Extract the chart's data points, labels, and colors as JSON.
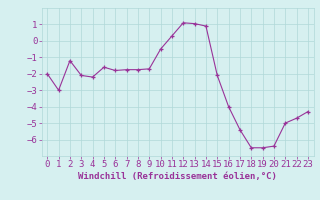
{
  "x": [
    0,
    1,
    2,
    3,
    4,
    5,
    6,
    7,
    8,
    9,
    10,
    11,
    12,
    13,
    14,
    15,
    16,
    17,
    18,
    19,
    20,
    21,
    22,
    23
  ],
  "y": [
    -2.0,
    -3.0,
    -1.2,
    -2.1,
    -2.2,
    -1.6,
    -1.8,
    -1.75,
    -1.75,
    -1.7,
    -0.5,
    0.3,
    1.1,
    1.05,
    0.9,
    -2.1,
    -4.0,
    -5.4,
    -6.5,
    -6.5,
    -6.4,
    -5.0,
    -4.7,
    -4.3
  ],
  "line_color": "#993399",
  "marker": "+",
  "marker_size": 3,
  "bg_color": "#d6f0f0",
  "grid_color": "#b0d8d8",
  "xlabel": "Windchill (Refroidissement éolien,°C)",
  "ylim": [
    -7,
    2
  ],
  "xlim": [
    -0.5,
    23.5
  ],
  "yticks": [
    1,
    0,
    -1,
    -2,
    -3,
    -4,
    -5,
    -6
  ],
  "xticks": [
    0,
    1,
    2,
    3,
    4,
    5,
    6,
    7,
    8,
    9,
    10,
    11,
    12,
    13,
    14,
    15,
    16,
    17,
    18,
    19,
    20,
    21,
    22,
    23
  ],
  "tick_color": "#993399",
  "label_color": "#993399",
  "font_family": "monospace",
  "xlabel_fontsize": 6.5,
  "tick_fontsize": 6.5
}
